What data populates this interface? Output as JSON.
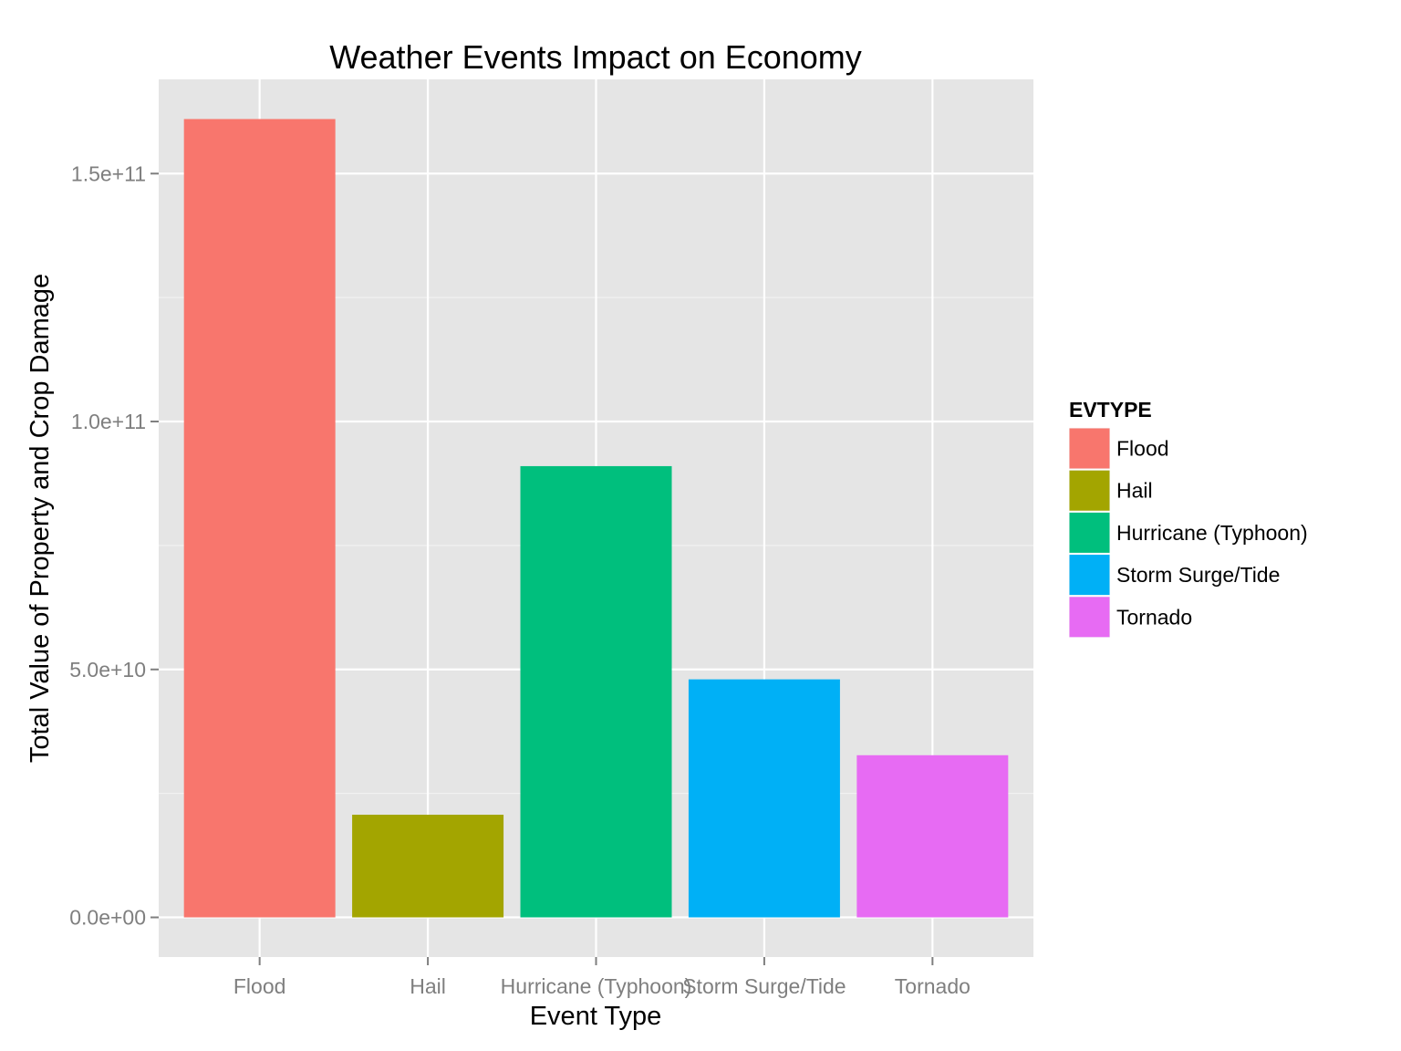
{
  "chart_data": {
    "type": "bar",
    "title": "Weather Events Impact on Economy",
    "xlabel": "Event Type",
    "ylabel": "Total Value of Property and Crop Damage",
    "categories": [
      "Flood",
      "Hail",
      "Hurricane (Typhoon)",
      "Storm Surge/Tide",
      "Tornado"
    ],
    "values": [
      161000000000,
      20700000000,
      91000000000,
      48000000000,
      32700000000
    ],
    "colors": [
      "#F8766D",
      "#A3A500",
      "#00BF7D",
      "#00B0F6",
      "#E76BF3"
    ],
    "yticks": [
      0,
      50000000000,
      100000000000,
      150000000000
    ],
    "ytick_labels": [
      "0.0e+00",
      "5.0e+10",
      "1.0e+11",
      "1.5e+11"
    ],
    "ylim": [
      -8000000000,
      169000000000
    ],
    "grid": true,
    "panel_background": "#E5E5E5",
    "legend": {
      "title": "EVTYPE",
      "position": "right",
      "entries": [
        "Flood",
        "Hail",
        "Hurricane (Typhoon)",
        "Storm Surge/Tide",
        "Tornado"
      ]
    }
  }
}
